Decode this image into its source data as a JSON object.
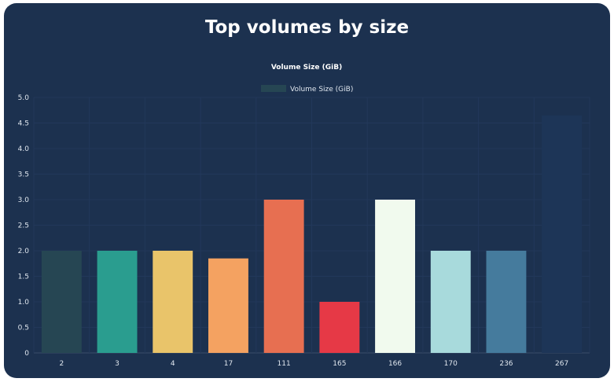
{
  "card": {
    "title": "Top volumes by size"
  },
  "chart_data": {
    "type": "bar",
    "title": "Volume Size (GiB)",
    "xlabel": "",
    "ylabel": "",
    "ylim": [
      0,
      5
    ],
    "y_ticks": [
      "0",
      "0.5",
      "1.0",
      "1.5",
      "2.0",
      "2.5",
      "3.0",
      "3.5",
      "4.0",
      "4.5",
      "5.0"
    ],
    "grid": true,
    "legend_position": "top-center",
    "categories": [
      "2",
      "3",
      "4",
      "17",
      "111",
      "165",
      "166",
      "170",
      "236",
      "267"
    ],
    "series": [
      {
        "name": "Volume Size (GiB)",
        "legend_color": "#264653",
        "values": [
          2,
          2,
          2,
          1.85,
          3,
          1,
          3,
          2,
          2,
          4.65
        ],
        "colors": [
          "#264653",
          "#2a9d8f",
          "#e9c46a",
          "#f4a261",
          "#e76f51",
          "#e63946",
          "#f1faee",
          "#a8dadc",
          "#457b9d",
          "#1d3557"
        ]
      }
    ]
  }
}
